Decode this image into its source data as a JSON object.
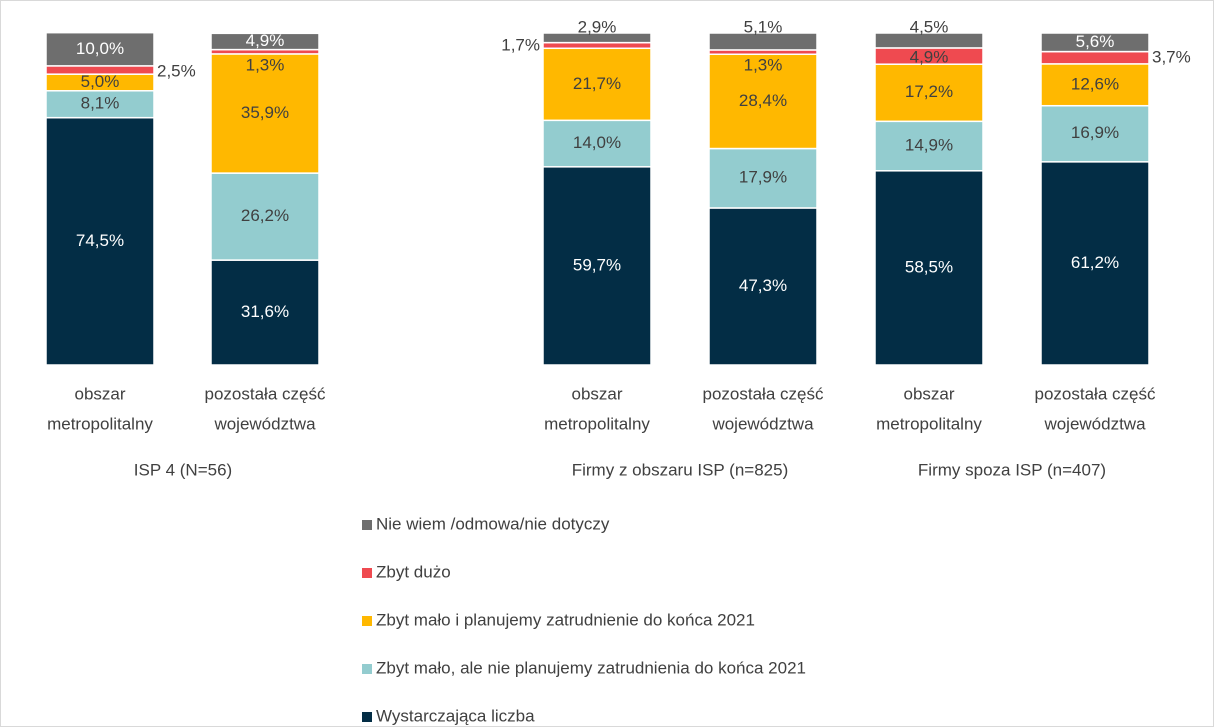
{
  "chart_data": {
    "type": "stacked_bar",
    "groups": [
      {
        "name": "ISP 4 (N=56)",
        "categories": [
          [
            "obszar",
            "metropolitalny"
          ],
          [
            "pozostała część",
            "województwa"
          ]
        ]
      },
      {
        "name": "Firmy z obszaru ISP (n=825)",
        "categories": [
          [
            "obszar",
            "metropolitalny"
          ],
          [
            "pozostała część",
            "województwa"
          ]
        ]
      },
      {
        "name": "Firmy spoza ISP (n=407)",
        "categories": [
          [
            "obszar",
            "metropolitalny"
          ],
          [
            "pozostała część",
            "województwa"
          ]
        ]
      }
    ],
    "series": [
      {
        "name": "Wystarczająca liczba",
        "color": "#032d45",
        "values": [
          74.5,
          31.6,
          59.7,
          47.3,
          58.5,
          61.2
        ],
        "value_labels": [
          "74,5%",
          "31,6%",
          "59,7%",
          "47,3%",
          "58,5%",
          "61,2%"
        ]
      },
      {
        "name": "Zbyt mało, ale nie planujemy zatrudnienia do końca 2021",
        "color": "#93cccf",
        "values": [
          8.1,
          26.2,
          14.0,
          17.9,
          14.9,
          16.9
        ],
        "value_labels": [
          "8,1%",
          "26,2%",
          "14,0%",
          "17,9%",
          "14,9%",
          "16,9%"
        ]
      },
      {
        "name": "Zbyt mało i planujemy zatrudnienie do końca 2021",
        "color": "#ffb800",
        "values": [
          5.0,
          35.9,
          21.7,
          28.4,
          17.2,
          12.6
        ],
        "value_labels": [
          "5,0%",
          "35,9%",
          "21,7%",
          "28,4%",
          "17,2%",
          "12,6%"
        ]
      },
      {
        "name": "Zbyt dużo",
        "color": "#ef4a50",
        "values": [
          2.5,
          1.3,
          1.7,
          1.3,
          4.9,
          3.7
        ],
        "value_labels": [
          "2,5%",
          "1,3%",
          "1,7%",
          "1,3%",
          "4,9%",
          "3,7%"
        ]
      },
      {
        "name": "Nie wiem /odmowa/nie dotyczy",
        "color": "#6e6e6e",
        "values": [
          10.0,
          4.9,
          2.9,
          5.1,
          4.5,
          5.6
        ],
        "value_labels": [
          "10,0%",
          "4,9%",
          "2,9%",
          "5,1%",
          "4,5%",
          "5,6%"
        ]
      }
    ]
  }
}
